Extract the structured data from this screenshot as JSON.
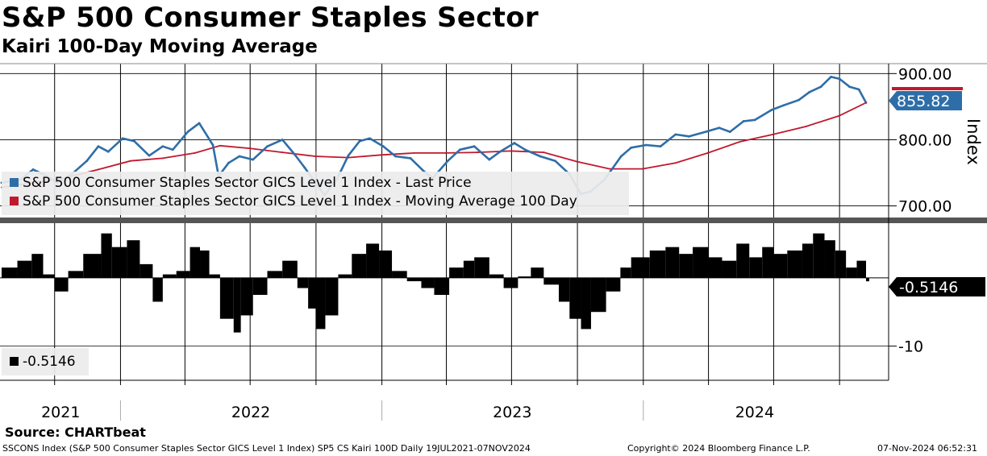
{
  "header": {
    "title": "S&P 500 Consumer Staples Sector",
    "subtitle": "Kairi 100-Day Moving Average"
  },
  "source": "Source: CHARTbeat",
  "footer": {
    "ticker_desc": "SSCONS Index (S&P 500 Consumer Staples Sector GICS Level 1 Index) SP5 CS Kairi 100D  Daily 19JUL2021-07NOV2024",
    "copyright": "Copyright© 2024 Bloomberg Finance L.P.",
    "timestamp": "07-Nov-2024 06:52:31"
  },
  "colors": {
    "price": "#2e6ea8",
    "ma": "#c0182e",
    "kairi": "#000000"
  },
  "legend": {
    "price_label": "S&P 500 Consumer Staples Sector GICS Level 1 Index - Last Price",
    "ma_label": "S&P 500 Consumer Staples Sector GICS Level 1 Index - Moving Average 100 Day",
    "kairi_label": "-0.5146"
  },
  "chart_data": [
    {
      "type": "line",
      "title": "S&P 500 Consumer Staples Sector",
      "ylabel": "Index",
      "ylim": [
        680,
        915
      ],
      "y_ticks": [
        "900.00",
        "800.00",
        "700.00"
      ],
      "y_tick_values": [
        900,
        800,
        700
      ],
      "x_range": [
        "2021-07-19",
        "2024-11-07"
      ],
      "x_labels": [
        "2021",
        "2022",
        "2023",
        "2024"
      ],
      "last_price_label": "855.82",
      "series": [
        {
          "name": "S&P 500 Consumer Staples Sector GICS Level 1 Index - Last Price",
          "dates": [
            "2021-07-19",
            "2021-08-15",
            "2021-09-01",
            "2021-09-20",
            "2021-10-05",
            "2021-10-25",
            "2021-11-15",
            "2021-12-01",
            "2021-12-15",
            "2022-01-04",
            "2022-01-20",
            "2022-02-10",
            "2022-03-01",
            "2022-03-15",
            "2022-04-05",
            "2022-04-21",
            "2022-05-10",
            "2022-05-18",
            "2022-06-01",
            "2022-06-16",
            "2022-07-05",
            "2022-07-25",
            "2022-08-15",
            "2022-09-01",
            "2022-09-15",
            "2022-09-30",
            "2022-10-13",
            "2022-10-31",
            "2022-11-15",
            "2022-12-01",
            "2022-12-15",
            "2023-01-03",
            "2023-01-20",
            "2023-02-10",
            "2023-03-01",
            "2023-03-13",
            "2023-04-03",
            "2023-04-20",
            "2023-05-10",
            "2023-05-31",
            "2023-06-15",
            "2023-07-05",
            "2023-07-20",
            "2023-08-10",
            "2023-08-31",
            "2023-09-20",
            "2023-10-06",
            "2023-10-20",
            "2023-11-08",
            "2023-12-01",
            "2023-12-15",
            "2024-01-05",
            "2024-01-25",
            "2024-02-15",
            "2024-03-05",
            "2024-03-28",
            "2024-04-16",
            "2024-05-01",
            "2024-05-20",
            "2024-06-05",
            "2024-06-28",
            "2024-07-15",
            "2024-08-05",
            "2024-08-20",
            "2024-09-05",
            "2024-09-19",
            "2024-10-01",
            "2024-10-15",
            "2024-10-28",
            "2024-11-07"
          ],
          "values": [
            735,
            740,
            755,
            745,
            735,
            748,
            768,
            790,
            782,
            802,
            798,
            776,
            790,
            785,
            812,
            825,
            792,
            745,
            765,
            775,
            770,
            790,
            800,
            778,
            758,
            735,
            716,
            742,
            776,
            798,
            802,
            790,
            775,
            772,
            752,
            742,
            768,
            785,
            790,
            770,
            782,
            795,
            785,
            775,
            768,
            748,
            718,
            722,
            740,
            775,
            788,
            792,
            790,
            808,
            805,
            812,
            818,
            812,
            828,
            830,
            845,
            852,
            860,
            872,
            880,
            895,
            892,
            880,
            876,
            856
          ]
        },
        {
          "name": "S&P 500 Consumer Staples Sector GICS Level 1 Index - Moving Average 100 Day",
          "dates": [
            "2021-07-19",
            "2021-09-01",
            "2021-10-15",
            "2021-12-01",
            "2022-01-15",
            "2022-03-01",
            "2022-04-15",
            "2022-05-20",
            "2022-06-30",
            "2022-08-15",
            "2022-09-30",
            "2022-11-15",
            "2022-12-31",
            "2023-02-15",
            "2023-03-31",
            "2023-05-15",
            "2023-06-30",
            "2023-08-15",
            "2023-09-30",
            "2023-11-15",
            "2023-12-31",
            "2024-02-15",
            "2024-03-31",
            "2024-05-15",
            "2024-06-30",
            "2024-08-15",
            "2024-09-30",
            "2024-11-07"
          ],
          "values": [
            728,
            735,
            742,
            755,
            768,
            772,
            780,
            791,
            787,
            781,
            775,
            773,
            777,
            780,
            780,
            781,
            783,
            781,
            767,
            756,
            756,
            765,
            780,
            797,
            808,
            820,
            836,
            856
          ]
        }
      ]
    },
    {
      "type": "bar",
      "title": "Kairi 100-Day Moving Average",
      "ylim": [
        -15,
        8
      ],
      "y_ticks": [
        "-10"
      ],
      "y_tick_values": [
        -10
      ],
      "last_value_label": "-0.5146",
      "series": [
        {
          "name": "Kairi 100D",
          "dates": [
            "2021-07-19",
            "2021-08-10",
            "2021-08-30",
            "2021-09-15",
            "2021-10-01",
            "2021-10-20",
            "2021-11-10",
            "2021-12-05",
            "2021-12-20",
            "2022-01-10",
            "2022-01-28",
            "2022-02-15",
            "2022-03-01",
            "2022-03-20",
            "2022-04-08",
            "2022-04-22",
            "2022-05-05",
            "2022-05-20",
            "2022-06-08",
            "2022-06-18",
            "2022-07-05",
            "2022-07-25",
            "2022-08-15",
            "2022-09-05",
            "2022-09-20",
            "2022-10-01",
            "2022-10-14",
            "2022-11-01",
            "2022-11-20",
            "2022-12-10",
            "2022-12-28",
            "2023-01-15",
            "2023-02-05",
            "2023-02-25",
            "2023-03-15",
            "2023-04-05",
            "2023-04-25",
            "2023-05-10",
            "2023-05-31",
            "2023-06-20",
            "2023-07-10",
            "2023-07-28",
            "2023-08-15",
            "2023-09-05",
            "2023-09-20",
            "2023-10-06",
            "2023-10-20",
            "2023-11-10",
            "2023-11-30",
            "2023-12-15",
            "2024-01-10",
            "2024-02-01",
            "2024-02-20",
            "2024-03-10",
            "2024-04-01",
            "2024-04-20",
            "2024-05-10",
            "2024-05-28",
            "2024-06-15",
            "2024-07-01",
            "2024-07-20",
            "2024-08-10",
            "2024-08-25",
            "2024-09-10",
            "2024-09-25",
            "2024-10-10",
            "2024-10-25",
            "2024-11-07"
          ],
          "values": [
            1.5,
            2.5,
            3.5,
            0.5,
            -2.0,
            1.0,
            3.5,
            6.5,
            4.5,
            5.5,
            2.0,
            -3.5,
            0.5,
            1.0,
            4.5,
            4.0,
            0.5,
            -6.0,
            -8.0,
            -5.5,
            -2.5,
            1.0,
            2.5,
            -1.5,
            -4.5,
            -7.5,
            -5.5,
            0.5,
            3.5,
            5.0,
            4.0,
            1.0,
            -0.5,
            -1.5,
            -2.5,
            1.5,
            2.5,
            3.0,
            0.5,
            -1.5,
            0.2,
            1.5,
            -1.0,
            -3.5,
            -6.0,
            -7.5,
            -5.0,
            -2.0,
            1.5,
            3.0,
            4.0,
            4.5,
            3.5,
            4.5,
            3.0,
            2.5,
            5.0,
            3.0,
            4.5,
            3.5,
            4.0,
            5.0,
            6.5,
            5.5,
            4.0,
            1.5,
            2.5,
            -0.51
          ]
        }
      ]
    }
  ]
}
